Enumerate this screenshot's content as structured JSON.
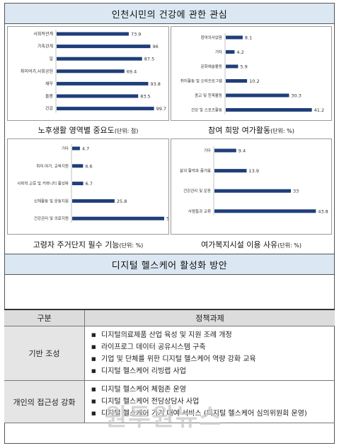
{
  "header": {
    "title": "인천시민의 건강에 관한 관심"
  },
  "section2": {
    "title": "디지털 헬스케어 활성화 방안"
  },
  "table": {
    "col_category": "구분",
    "col_tasks": "정책과제",
    "rows": [
      {
        "category": "기반 조성",
        "items": [
          "디지털의료제품 산업 육성 및 지원 조례 개정",
          "라이프로그 데이터 공유시스템 구축",
          "기업 및 단체를 위한 디지털 헬스케어 역량 강화 교육",
          "디지털 헬스케어 리빙랩 사업"
        ]
      },
      {
        "category": "개인의 접근성 강화",
        "items": [
          "디지털 헬스케어 체험존 운영",
          "디지털 헬스케어 전담상담사 사업",
          "디지털 헬스케어 기기 대여 서비스 (디지털 헬스케어 심의위원회 운영)"
        ]
      }
    ]
  },
  "watermark": "원투원뉴스",
  "bar_color": "#1f3f7a",
  "chart_data": [
    {
      "type": "bar",
      "orientation": "horizontal",
      "title": "노후생활 영역별 중요도",
      "unit_note": "(단위: 점)",
      "categories": [
        "사회적관계",
        "가족관계",
        "일",
        "취미여가,사회공헌",
        "재무",
        "돌봄",
        "건강"
      ],
      "values": [
        73.9,
        96,
        87.5,
        69.4,
        93.8,
        83.5,
        99.7
      ],
      "xlim": [
        0,
        100
      ]
    },
    {
      "type": "bar",
      "orientation": "horizontal",
      "title": "참여 희망 여가활동",
      "unit_note": "(단위: %)",
      "categories": [
        "참여의사없음",
        "기타",
        "문화예술활동",
        "취미활동 및 오락프로그램",
        "종교 및 친목활동",
        "건강 및 스포츠활동"
      ],
      "values": [
        8.1,
        4.2,
        5.9,
        10.2,
        30.3,
        41.2
      ],
      "xlim": [
        0,
        42
      ]
    },
    {
      "type": "bar",
      "orientation": "horizontal",
      "title": "고령자 주거단지 필수 기능",
      "unit_note": "(단위: %)",
      "categories": [
        "기타",
        "취미·여가, 교육지원",
        "사회적 교류 및 커뮤니티 활성화",
        "신체활동 및 운동지원",
        "건강관리 및 의료지원"
      ],
      "values": [
        4.7,
        6.6,
        6.7,
        25.8,
        56
      ],
      "xlim": [
        0,
        56
      ]
    },
    {
      "type": "bar",
      "orientation": "horizontal",
      "title": "여가복지시설 이용 사유",
      "unit_note": "(단위: %)",
      "categories": [
        "기타",
        "삶의 활력과 즐거움",
        "건강관리 및 운동",
        "사람들과 교류"
      ],
      "values": [
        9.4,
        13.9,
        33,
        43.8
      ],
      "xlim": [
        0,
        44
      ]
    }
  ]
}
